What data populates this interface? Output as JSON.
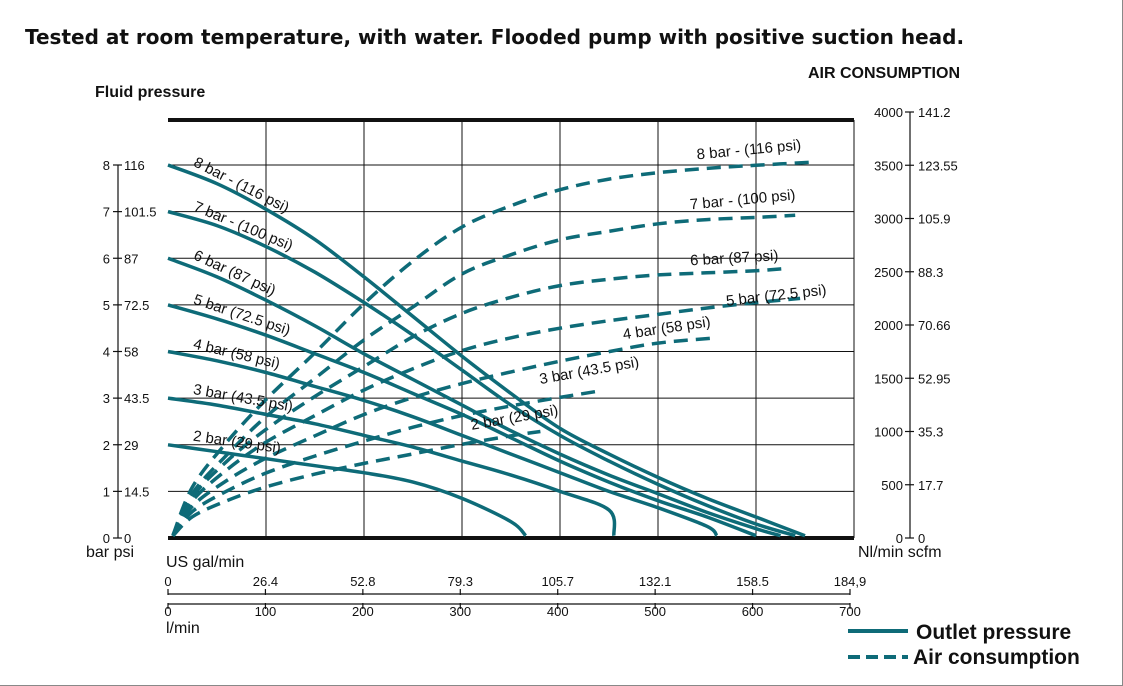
{
  "chart_data": {
    "type": "line",
    "title": "Tested at room temperature, with water. Flooded pump with positive suction head.",
    "left_axis_label": "Fluid pressure",
    "right_axis_label": "AIR CONSUMPTION",
    "left_units": "bar psi",
    "right_units": "Nl/min scfm",
    "x_label_top": "US gal/min",
    "x_label_bottom": "l/min",
    "x_ticks_gal": [
      "0",
      "26.4",
      "52.8",
      "79.3",
      "105.7",
      "132.1",
      "158.5",
      "184,9"
    ],
    "x_ticks_l": [
      "0",
      "100",
      "200",
      "300",
      "400",
      "500",
      "600",
      "700"
    ],
    "xlim_l": [
      0,
      700
    ],
    "left_ticks": [
      {
        "bar": "0",
        "psi": "0"
      },
      {
        "bar": "1",
        "psi": "14.5"
      },
      {
        "bar": "2",
        "psi": "29"
      },
      {
        "bar": "3",
        "psi": "43.5"
      },
      {
        "bar": "4",
        "psi": "58"
      },
      {
        "bar": "5",
        "psi": "72.5"
      },
      {
        "bar": "6",
        "psi": "87"
      },
      {
        "bar": "7",
        "psi": "101.5"
      },
      {
        "bar": "8",
        "psi": "116"
      }
    ],
    "ylim_bar": [
      0,
      8.4
    ],
    "right_ticks": [
      {
        "nl": "0",
        "scfm": "0"
      },
      {
        "nl": "500",
        "scfm": "17.7"
      },
      {
        "nl": "1000",
        "scfm": "35.3"
      },
      {
        "nl": "1500",
        "scfm": "52.95"
      },
      {
        "nl": "2000",
        "scfm": "70.66"
      },
      {
        "nl": "2500",
        "scfm": "88.3"
      },
      {
        "nl": "3000",
        "scfm": "105.9"
      },
      {
        "nl": "3500",
        "scfm": "123.55"
      },
      {
        "nl": "4000",
        "scfm": "141.2"
      }
    ],
    "ylim_air": [
      0,
      4000
    ],
    "grid": true,
    "legend_position": "bottom-right",
    "legend": [
      {
        "label": "Outlet pressure",
        "style": "solid"
      },
      {
        "label": "Air consumption",
        "style": "dashed"
      }
    ],
    "color": "#0e6b78",
    "outlet_pressure_series": [
      {
        "name": "8 bar - (116 psi)",
        "points": [
          [
            0,
            8.0
          ],
          [
            50,
            7.6
          ],
          [
            100,
            7.05
          ],
          [
            150,
            6.4
          ],
          [
            200,
            5.6
          ],
          [
            250,
            4.75
          ],
          [
            300,
            3.9
          ],
          [
            350,
            3.1
          ],
          [
            400,
            2.35
          ],
          [
            450,
            1.8
          ],
          [
            500,
            1.3
          ],
          [
            550,
            0.85
          ],
          [
            600,
            0.45
          ],
          [
            650,
            0.05
          ]
        ]
      },
      {
        "name": "7 bar - (100 psi)",
        "points": [
          [
            0,
            7.0
          ],
          [
            50,
            6.7
          ],
          [
            100,
            6.25
          ],
          [
            150,
            5.7
          ],
          [
            200,
            5.05
          ],
          [
            250,
            4.35
          ],
          [
            300,
            3.6
          ],
          [
            350,
            2.85
          ],
          [
            400,
            2.2
          ],
          [
            450,
            1.65
          ],
          [
            500,
            1.15
          ],
          [
            550,
            0.7
          ],
          [
            600,
            0.3
          ],
          [
            640,
            0.05
          ]
        ]
      },
      {
        "name": "6 bar (87 psi)",
        "points": [
          [
            0,
            6.0
          ],
          [
            50,
            5.6
          ],
          [
            100,
            5.1
          ],
          [
            150,
            4.55
          ],
          [
            200,
            3.95
          ],
          [
            250,
            3.4
          ],
          [
            300,
            2.85
          ],
          [
            350,
            2.3
          ],
          [
            400,
            1.8
          ],
          [
            450,
            1.35
          ],
          [
            500,
            0.95
          ],
          [
            550,
            0.55
          ],
          [
            600,
            0.2
          ],
          [
            625,
            0.05
          ]
        ]
      },
      {
        "name": "5 bar (72.5 psi)",
        "points": [
          [
            0,
            5.0
          ],
          [
            50,
            4.7
          ],
          [
            100,
            4.35
          ],
          [
            150,
            3.95
          ],
          [
            200,
            3.55
          ],
          [
            250,
            3.1
          ],
          [
            300,
            2.65
          ],
          [
            350,
            2.15
          ],
          [
            400,
            1.65
          ],
          [
            450,
            1.2
          ],
          [
            500,
            0.8
          ],
          [
            550,
            0.45
          ],
          [
            600,
            0.05
          ]
        ]
      },
      {
        "name": "4 bar (58 psi)",
        "points": [
          [
            0,
            4.0
          ],
          [
            50,
            3.8
          ],
          [
            100,
            3.55
          ],
          [
            150,
            3.25
          ],
          [
            200,
            2.95
          ],
          [
            250,
            2.6
          ],
          [
            300,
            2.2
          ],
          [
            350,
            1.8
          ],
          [
            400,
            1.4
          ],
          [
            450,
            1.0
          ],
          [
            500,
            0.65
          ],
          [
            550,
            0.25
          ],
          [
            560,
            0.05
          ]
        ]
      },
      {
        "name": "3 bar (43.5 psi)",
        "points": [
          [
            0,
            3.0
          ],
          [
            50,
            2.85
          ],
          [
            100,
            2.65
          ],
          [
            150,
            2.45
          ],
          [
            200,
            2.2
          ],
          [
            250,
            1.95
          ],
          [
            300,
            1.65
          ],
          [
            350,
            1.35
          ],
          [
            400,
            1.0
          ],
          [
            450,
            0.6
          ],
          [
            455,
            0.05
          ]
        ]
      },
      {
        "name": "2 bar (29 psi)",
        "points": [
          [
            0,
            2.0
          ],
          [
            50,
            1.85
          ],
          [
            100,
            1.7
          ],
          [
            150,
            1.55
          ],
          [
            200,
            1.4
          ],
          [
            250,
            1.2
          ],
          [
            300,
            0.85
          ],
          [
            350,
            0.35
          ],
          [
            365,
            0.05
          ]
        ]
      }
    ],
    "air_consumption_series": [
      {
        "name": "8 bar - (116 psi)",
        "points": [
          [
            5,
            25
          ],
          [
            25,
            480
          ],
          [
            60,
            900
          ],
          [
            100,
            1300
          ],
          [
            150,
            1740
          ],
          [
            200,
            2200
          ],
          [
            250,
            2600
          ],
          [
            300,
            2920
          ],
          [
            350,
            3120
          ],
          [
            400,
            3270
          ],
          [
            450,
            3370
          ],
          [
            500,
            3430
          ],
          [
            550,
            3470
          ],
          [
            600,
            3500
          ],
          [
            660,
            3530
          ]
        ]
      },
      {
        "name": "7 bar - (100 psi)",
        "points": [
          [
            5,
            20
          ],
          [
            25,
            420
          ],
          [
            60,
            780
          ],
          [
            100,
            1140
          ],
          [
            150,
            1500
          ],
          [
            200,
            1860
          ],
          [
            250,
            2170
          ],
          [
            300,
            2480
          ],
          [
            350,
            2660
          ],
          [
            400,
            2800
          ],
          [
            450,
            2880
          ],
          [
            500,
            2950
          ],
          [
            550,
            2990
          ],
          [
            600,
            3010
          ],
          [
            640,
            3030
          ]
        ]
      },
      {
        "name": "6 bar (87 psi)",
        "points": [
          [
            5,
            20
          ],
          [
            25,
            390
          ],
          [
            60,
            720
          ],
          [
            100,
            1020
          ],
          [
            150,
            1330
          ],
          [
            200,
            1610
          ],
          [
            250,
            1890
          ],
          [
            300,
            2110
          ],
          [
            350,
            2260
          ],
          [
            400,
            2370
          ],
          [
            450,
            2430
          ],
          [
            500,
            2470
          ],
          [
            550,
            2490
          ],
          [
            600,
            2510
          ],
          [
            630,
            2530
          ]
        ]
      },
      {
        "name": "5 bar (72.5 psi)",
        "points": [
          [
            5,
            20
          ],
          [
            25,
            350
          ],
          [
            60,
            640
          ],
          [
            100,
            900
          ],
          [
            150,
            1150
          ],
          [
            200,
            1390
          ],
          [
            250,
            1590
          ],
          [
            300,
            1760
          ],
          [
            350,
            1880
          ],
          [
            400,
            1970
          ],
          [
            450,
            2040
          ],
          [
            500,
            2100
          ],
          [
            550,
            2160
          ],
          [
            600,
            2210
          ],
          [
            645,
            2250
          ]
        ]
      },
      {
        "name": "4 bar (58 psi)",
        "points": [
          [
            5,
            20
          ],
          [
            25,
            300
          ],
          [
            60,
            540
          ],
          [
            100,
            750
          ],
          [
            150,
            960
          ],
          [
            200,
            1160
          ],
          [
            250,
            1320
          ],
          [
            300,
            1450
          ],
          [
            350,
            1560
          ],
          [
            400,
            1660
          ],
          [
            450,
            1750
          ],
          [
            500,
            1830
          ],
          [
            560,
            1880
          ]
        ]
      },
      {
        "name": "3 bar (43.5 psi)",
        "points": [
          [
            5,
            20
          ],
          [
            25,
            250
          ],
          [
            60,
            440
          ],
          [
            100,
            610
          ],
          [
            150,
            770
          ],
          [
            200,
            910
          ],
          [
            250,
            1040
          ],
          [
            300,
            1150
          ],
          [
            350,
            1240
          ],
          [
            400,
            1320
          ],
          [
            440,
            1380
          ]
        ]
      },
      {
        "name": "2 bar (29 psi)",
        "points": [
          [
            5,
            20
          ],
          [
            25,
            200
          ],
          [
            60,
            350
          ],
          [
            100,
            480
          ],
          [
            150,
            600
          ],
          [
            200,
            700
          ],
          [
            250,
            790
          ],
          [
            300,
            880
          ],
          [
            350,
            960
          ],
          [
            380,
            1000
          ]
        ]
      }
    ]
  }
}
